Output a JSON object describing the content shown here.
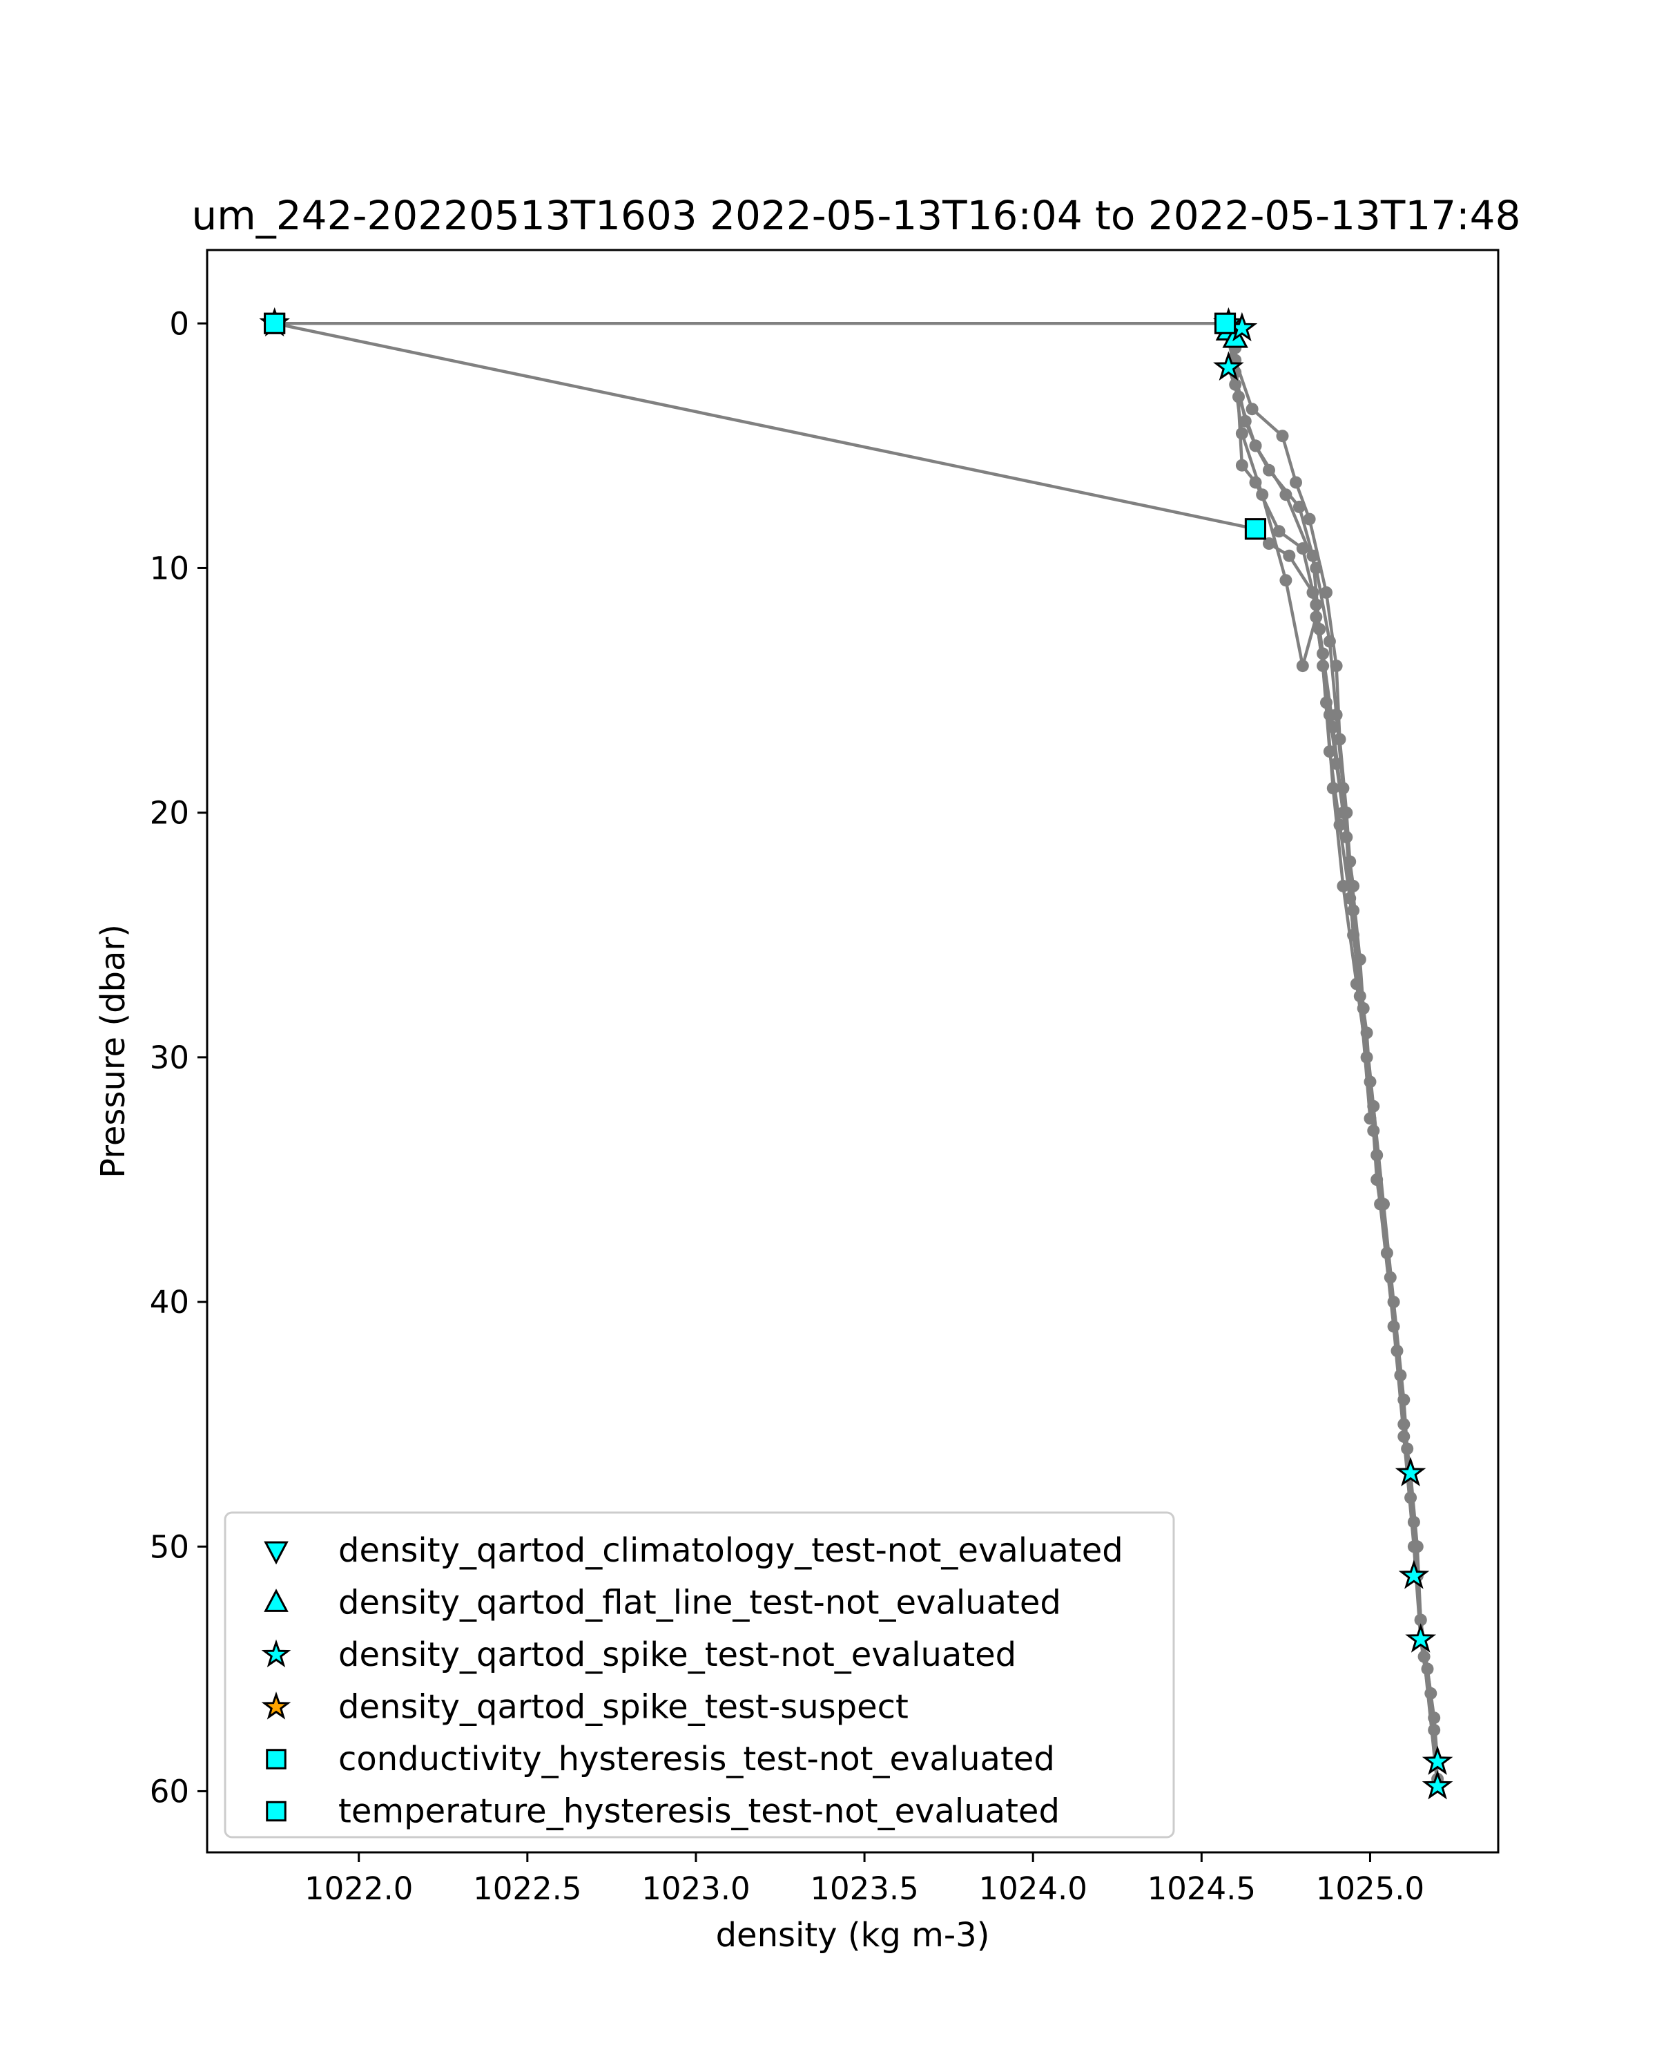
{
  "chart_data": {
    "type": "scatter",
    "title": "um_242-20220513T1603 2022-05-13T16:04 to 2022-05-13T17:48",
    "xlabel": "density (kg m-3)",
    "ylabel": "Pressure (dbar)",
    "xlim": [
      1021.55,
      1025.38
    ],
    "ylim": [
      62.5,
      -3
    ],
    "y_inverted": true,
    "grid": false,
    "legend_position": "lower-left",
    "x_ticks": [
      1022.0,
      1022.5,
      1023.0,
      1023.5,
      1024.0,
      1024.5,
      1025.0
    ],
    "x_tick_labels": [
      "1022.0",
      "1022.5",
      "1023.0",
      "1023.5",
      "1024.0",
      "1024.5",
      "1025.0"
    ],
    "y_ticks": [
      0,
      10,
      20,
      30,
      40,
      50,
      60
    ],
    "y_tick_labels": [
      "0",
      "10",
      "20",
      "30",
      "40",
      "50",
      "60"
    ],
    "profile_color": "#808080",
    "profiles": [
      {
        "points": [
          [
            1021.75,
            0.0
          ],
          [
            1024.57,
            0.0
          ],
          [
            1024.6,
            2.0
          ],
          [
            1024.63,
            4.0
          ],
          [
            1024.66,
            5.0
          ],
          [
            1024.75,
            7.0
          ],
          [
            1024.84,
            10.0
          ],
          [
            1024.88,
            13.0
          ],
          [
            1024.9,
            16.0
          ],
          [
            1024.92,
            19.0
          ],
          [
            1024.94,
            22.0
          ],
          [
            1024.97,
            26.0
          ],
          [
            1024.99,
            30.0
          ],
          [
            1025.02,
            34.0
          ],
          [
            1025.05,
            38.0
          ],
          [
            1025.08,
            42.0
          ],
          [
            1025.1,
            45.0
          ],
          [
            1025.12,
            47.0
          ],
          [
            1025.14,
            50.0
          ],
          [
            1025.15,
            53.0
          ],
          [
            1025.17,
            55.0
          ],
          [
            1025.19,
            57.0
          ],
          [
            1025.2,
            58.8
          ]
        ]
      },
      {
        "points": [
          [
            1024.58,
            0.1
          ],
          [
            1024.6,
            1.5
          ],
          [
            1024.65,
            3.5
          ],
          [
            1024.74,
            4.6
          ],
          [
            1024.78,
            6.5
          ],
          [
            1024.82,
            8.0
          ],
          [
            1024.87,
            11.0
          ],
          [
            1024.9,
            14.0
          ],
          [
            1024.91,
            17.0
          ],
          [
            1024.93,
            20.0
          ],
          [
            1024.95,
            24.0
          ],
          [
            1024.98,
            28.0
          ],
          [
            1025.01,
            32.0
          ],
          [
            1025.04,
            36.0
          ],
          [
            1025.07,
            40.0
          ],
          [
            1025.1,
            44.0
          ],
          [
            1025.12,
            48.0
          ],
          [
            1025.14,
            51.2
          ],
          [
            1025.16,
            54.5
          ],
          [
            1025.2,
            59.8
          ]
        ]
      },
      {
        "points": [
          [
            1024.6,
            0.3
          ],
          [
            1024.58,
            1.8
          ],
          [
            1024.61,
            3.0
          ],
          [
            1024.66,
            5.0
          ],
          [
            1024.7,
            6.0
          ],
          [
            1024.79,
            7.5
          ],
          [
            1024.83,
            9.5
          ],
          [
            1024.85,
            12.5
          ],
          [
            1024.87,
            15.5
          ],
          [
            1024.89,
            19.0
          ],
          [
            1024.92,
            23.0
          ],
          [
            1024.96,
            27.0
          ],
          [
            1025.0,
            31.0
          ],
          [
            1025.02,
            35.0
          ],
          [
            1025.06,
            39.0
          ],
          [
            1025.09,
            43.0
          ],
          [
            1025.11,
            46.0
          ],
          [
            1025.13,
            49.0
          ],
          [
            1025.15,
            53.0
          ],
          [
            1025.18,
            56.0
          ],
          [
            1025.2,
            59.5
          ]
        ]
      },
      {
        "points": [
          [
            1024.58,
            0.0
          ],
          [
            1024.6,
            2.5
          ],
          [
            1024.62,
            4.5
          ],
          [
            1024.68,
            7.0
          ],
          [
            1024.75,
            10.5
          ],
          [
            1024.8,
            14.0
          ],
          [
            1024.84,
            12.0
          ],
          [
            1024.88,
            16.0
          ],
          [
            1024.9,
            18.0
          ],
          [
            1024.93,
            21.0
          ],
          [
            1024.95,
            25.0
          ],
          [
            1024.99,
            29.0
          ],
          [
            1025.01,
            33.0
          ],
          [
            1025.03,
            36.0
          ],
          [
            1025.07,
            41.0
          ],
          [
            1025.1,
            45.5
          ],
          [
            1025.13,
            50.0
          ],
          [
            1025.15,
            53.8
          ],
          [
            1025.19,
            57.5
          ]
        ]
      },
      {
        "points": [
          [
            1021.75,
            0.0
          ],
          [
            1024.66,
            8.4
          ],
          [
            1024.7,
            9.0
          ],
          [
            1024.76,
            9.5
          ],
          [
            1024.83,
            11.0
          ],
          [
            1024.86,
            14.0
          ],
          [
            1024.88,
            17.5
          ],
          [
            1024.91,
            20.5
          ],
          [
            1024.94,
            23.5
          ],
          [
            1024.97,
            27.5
          ],
          [
            1025.0,
            32.5
          ]
        ]
      },
      {
        "points": [
          [
            1024.6,
            1.0
          ],
          [
            1024.62,
            5.8
          ],
          [
            1024.66,
            6.5
          ],
          [
            1024.73,
            8.5
          ],
          [
            1024.8,
            9.2
          ],
          [
            1024.84,
            11.5
          ],
          [
            1024.86,
            13.5
          ],
          [
            1024.89,
            16.5
          ],
          [
            1024.92,
            20.0
          ],
          [
            1024.95,
            23.0
          ]
        ]
      }
    ],
    "series": [
      {
        "name": "density_qartod_climatology_test-not_evaluated",
        "marker": "triangle-down",
        "color": "#00ffff",
        "points": []
      },
      {
        "name": "density_qartod_flat_line_test-not_evaluated",
        "marker": "triangle-up",
        "color": "#00ffff",
        "points": [
          [
            1024.58,
            0.3
          ],
          [
            1024.6,
            0.6
          ]
        ]
      },
      {
        "name": "density_qartod_spike_test-not_evaluated",
        "marker": "star",
        "color": "#00ffff",
        "points": [
          [
            1021.75,
            0.0
          ],
          [
            1024.58,
            0.0
          ],
          [
            1024.62,
            0.2
          ],
          [
            1024.58,
            1.8
          ],
          [
            1025.12,
            47.0
          ],
          [
            1025.13,
            51.2
          ],
          [
            1025.15,
            53.8
          ],
          [
            1025.2,
            58.8
          ],
          [
            1025.2,
            59.8
          ]
        ]
      },
      {
        "name": "density_qartod_spike_test-suspect",
        "marker": "star",
        "color": "#ffa500",
        "points": []
      },
      {
        "name": "conductivity_hysteresis_test-not_evaluated",
        "marker": "square",
        "color": "#00ffff",
        "points": [
          [
            1021.75,
            0.0
          ],
          [
            1024.57,
            0.0
          ],
          [
            1024.66,
            8.4
          ]
        ]
      },
      {
        "name": "temperature_hysteresis_test-not_evaluated",
        "marker": "square",
        "color": "#00ffff",
        "points": [
          [
            1021.75,
            0.0
          ],
          [
            1024.57,
            0.0
          ],
          [
            1024.66,
            8.4
          ]
        ]
      }
    ]
  }
}
